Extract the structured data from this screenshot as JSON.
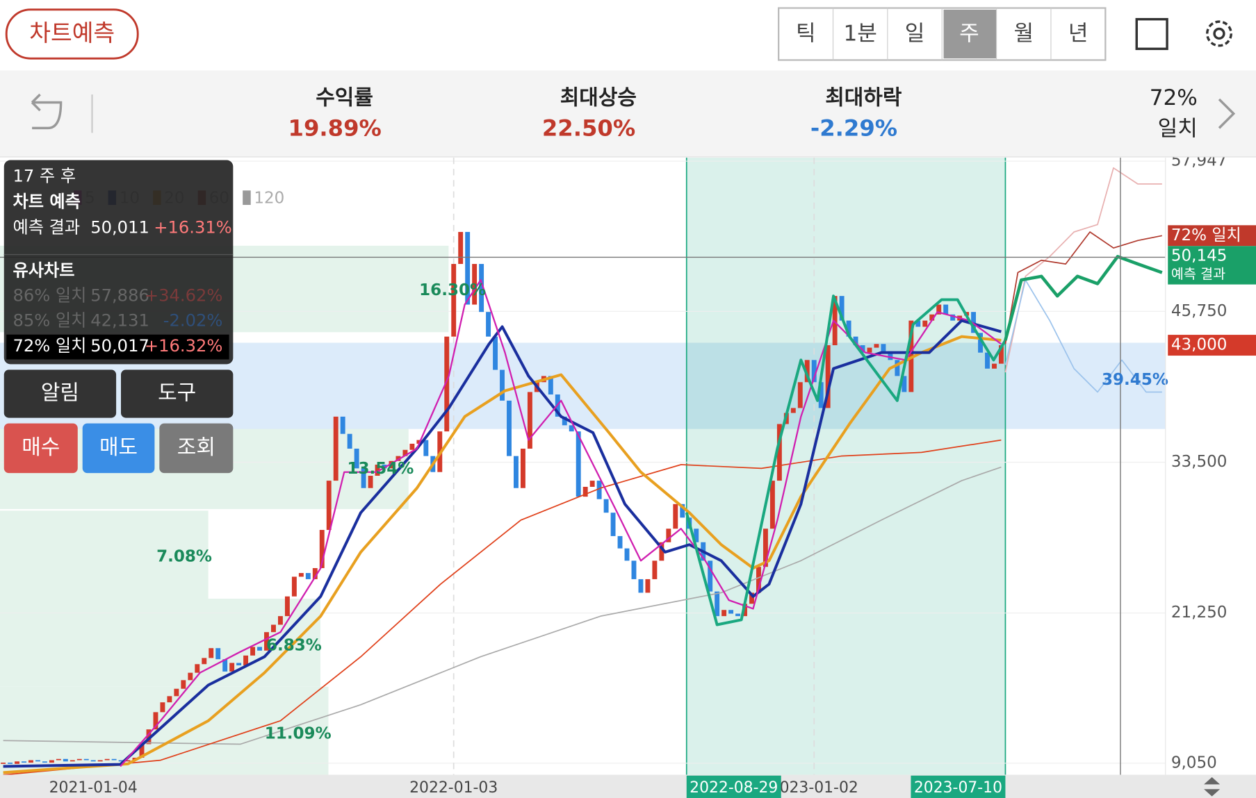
{
  "header": {
    "button": "차트예측",
    "periods": [
      "틱",
      "1분",
      "일",
      "주",
      "월",
      "년"
    ]
  },
  "stats": [
    {
      "label": "수익률",
      "value": "19.89%"
    },
    {
      "label": "최대상승",
      "value": "22.50%"
    },
    {
      "label": "최대하락",
      "value": "-2.29%"
    }
  ],
  "match": {
    "pct": "72%",
    "label": "일치"
  },
  "panel": {
    "weeks": "17 주 후",
    "title": "차트 예측",
    "result_label": "예측 결과",
    "result_price": "50,011",
    "result_change": "+16.31%",
    "similar_title": "유사차트",
    "similar": [
      {
        "label": "86% 일치",
        "price": "57,886",
        "change": "+34.62%"
      },
      {
        "label": "85% 일치",
        "price": "42,131",
        "change": "-2.02%"
      },
      {
        "label": "72% 일치",
        "price": "50,017",
        "change": "+16.32%"
      }
    ]
  },
  "buttons": [
    "알림",
    "도구",
    "매수",
    "매도",
    "조회"
  ],
  "chart_data": {
    "type": "candlestick",
    "xlim": [
      -0.46,
      167.7
    ],
    "ylim": [
      8115,
      58230
    ],
    "yticks": [
      {
        "value": 57947,
        "label": "57,947"
      },
      {
        "value": 45750,
        "label": "45,750"
      },
      {
        "value": 33500,
        "label": "33,500"
      },
      {
        "value": 21250,
        "label": "21,250"
      },
      {
        "value": 9050,
        "label": "9,050"
      }
    ],
    "xticks": [
      {
        "value": 13,
        "label": "2021-01-04"
      },
      {
        "value": 65,
        "label": "2022-01-03"
      },
      {
        "value": 117,
        "label": "2023-01-02"
      }
    ],
    "highlight": [
      {
        "value": 98.6,
        "label": "2022-08-29"
      },
      {
        "value": 144.6,
        "label": "2023-07-10"
      }
    ],
    "band": [
      36200,
      43200
    ],
    "crosshair": {
      "x": 161.2,
      "y": 50145
    },
    "legend": [
      {
        "name": "5",
        "color": "#d020b0"
      },
      {
        "name": "10",
        "color": "#1a2f9e"
      },
      {
        "name": "20",
        "color": "#e8a020"
      },
      {
        "name": "60",
        "color": "#b03a2e"
      },
      {
        "name": "120",
        "color": "#999999"
      }
    ],
    "up_color": "#d43a2a",
    "down_color": "#2f86e0",
    "open": [
      9000,
      9100,
      9000,
      9200,
      9100,
      9300,
      9200,
      9100,
      9300,
      9400,
      9200,
      9300,
      9400,
      9300,
      9200,
      9300,
      9400,
      9300,
      9200,
      9300,
      9500,
      10600,
      11800,
      13200,
      14000,
      14500,
      15100,
      15800,
      16400,
      17100,
      17600,
      18400,
      17500,
      16500,
      17200,
      17000,
      17800,
      18500,
      18200,
      19700,
      20300,
      21000,
      22600,
      24200,
      24500,
      24000,
      24900,
      28000,
      32000,
      37200,
      35800,
      34600,
      33000,
      31400,
      32400,
      33300,
      33000,
      33600,
      34000,
      34500,
      35000,
      35300,
      34000,
      32700,
      36000,
      43700,
      49600,
      52200,
      46300,
      49600,
      45700,
      43700,
      41000,
      38500,
      34000,
      31400,
      34600,
      39200,
      40000,
      40500,
      39000,
      37200,
      36500,
      36000,
      30700,
      31500,
      32000,
      30500,
      29400,
      27500,
      26500,
      25500,
      24000,
      22900,
      24000,
      25500,
      27000,
      28100,
      30100,
      29000,
      28100,
      27000,
      25500,
      23000,
      21000,
      21500,
      21200,
      21000,
      22000,
      22900,
      25000,
      28100,
      32000,
      36600,
      37500,
      37900,
      40000,
      41800,
      40000,
      37900,
      43000,
      47000,
      45000,
      43700,
      43000,
      42400,
      42800,
      43100,
      42500,
      41800,
      40500,
      39200,
      45000,
      44500,
      45000,
      45500,
      46300,
      45500,
      45000,
      45400,
      45700,
      44000,
      42400,
      41100,
      41500
    ],
    "close": [
      9100,
      9000,
      9200,
      9100,
      9300,
      9200,
      9100,
      9300,
      9400,
      9200,
      9300,
      9400,
      9300,
      9200,
      9300,
      9400,
      9300,
      9200,
      9300,
      9500,
      10600,
      11800,
      13200,
      14000,
      14500,
      15100,
      15800,
      16400,
      17100,
      17600,
      18400,
      17500,
      16500,
      17200,
      17000,
      17800,
      18500,
      18200,
      19700,
      20300,
      21000,
      22600,
      24200,
      24500,
      24000,
      24900,
      28000,
      32000,
      37200,
      35800,
      34600,
      33000,
      31400,
      32400,
      33300,
      33000,
      33600,
      34000,
      34500,
      35000,
      35300,
      34000,
      32700,
      36000,
      43700,
      49600,
      52200,
      46300,
      49600,
      45700,
      43700,
      41000,
      38500,
      34000,
      31400,
      34600,
      39200,
      40000,
      40500,
      39000,
      37200,
      36500,
      36000,
      30700,
      31500,
      32000,
      30500,
      29400,
      27500,
      26500,
      25500,
      24000,
      22900,
      24000,
      25500,
      27000,
      28100,
      30100,
      29000,
      28100,
      27000,
      25500,
      23000,
      21000,
      21500,
      21200,
      21000,
      22000,
      22900,
      25000,
      28100,
      32000,
      36600,
      37500,
      37900,
      40000,
      41800,
      40000,
      37900,
      43000,
      47000,
      45000,
      43700,
      43000,
      42400,
      42800,
      43100,
      42500,
      41800,
      40500,
      39200,
      45000,
      44500,
      45000,
      45500,
      46300,
      45500,
      45000,
      45400,
      45700,
      44000,
      42400,
      41100,
      41500,
      43000
    ],
    "lines": [
      {
        "color": "#aaaaaa",
        "width": 1.5,
        "x": [
          0,
          34.2,
          51.6,
          68.9,
          86.2,
          103.6,
          115.1,
          126.7,
          138.3,
          144
        ],
        "values": [
          10900,
          10600,
          13800,
          17700,
          21000,
          22900,
          25500,
          28800,
          32000,
          33100
        ]
      },
      {
        "color": "#e0401a",
        "width": 1.5,
        "x": [
          0,
          22.7,
          40,
          51.6,
          63.1,
          74.7,
          86.2,
          97.8,
          109.4,
          120.9,
          132.5,
          144
        ],
        "values": [
          8100,
          9300,
          12500,
          17700,
          23600,
          28800,
          31400,
          33300,
          33000,
          34000,
          34300,
          35300
        ]
      },
      {
        "color": "#e8a020",
        "width": 3.5,
        "x": [
          0,
          18,
          29.6,
          37.7,
          45.8,
          51.6,
          59.7,
          66.6,
          72.4,
          80.5,
          87.4,
          92,
          99,
          103.6,
          108.2,
          110.5,
          115.1,
          122.1,
          127.9,
          132.5,
          138.3,
          144
        ],
        "values": [
          8300,
          9000,
          12500,
          16400,
          21000,
          26200,
          31400,
          37200,
          39300,
          40600,
          35900,
          32700,
          29400,
          26800,
          24900,
          25500,
          30700,
          36600,
          41100,
          42400,
          43700,
          43400
        ]
      },
      {
        "color": "#1a2f9e",
        "width": 3.5,
        "x": [
          0,
          16.9,
          29.6,
          37.7,
          45.8,
          51.6,
          59.7,
          64.3,
          70.1,
          72,
          75.8,
          80.5,
          85.1,
          89.7,
          95.5,
          99,
          103.6,
          108.2,
          110.5,
          115.1,
          119.8,
          126.7,
          133.6,
          138.3,
          144
        ],
        "values": [
          8800,
          8960,
          15400,
          17700,
          22600,
          29400,
          34600,
          37900,
          43100,
          44500,
          40500,
          37200,
          35900,
          30100,
          26200,
          26800,
          25500,
          22600,
          23600,
          30100,
          41100,
          42400,
          42400,
          45000,
          44100
        ]
      },
      {
        "color": "#d020b0",
        "width": 2,
        "x": [
          16.9,
          22.7,
          28.4,
          34.2,
          40,
          45.8,
          49.2,
          53.9,
          59.7,
          64.3,
          66.6,
          68.9,
          72.4,
          75.8,
          80.5,
          82.8,
          88.6,
          92,
          97.8,
          101.3,
          104.7,
          108.2,
          111.7,
          115.1,
          119.8,
          124.4,
          130.2,
          134.8,
          139.4,
          144
        ],
        "values": [
          8800,
          12500,
          16400,
          18100,
          19700,
          24900,
          32700,
          32700,
          34600,
          40500,
          46300,
          48300,
          42400,
          35300,
          38500,
          35900,
          29400,
          25500,
          28100,
          25500,
          22300,
          21600,
          28800,
          37200,
          45000,
          42400,
          41800,
          45700,
          45000,
          43100
        ]
      },
      {
        "color": "#1aa880",
        "width": 3.5,
        "x": [
          98.6,
          103,
          106.5,
          111.7,
          115.1,
          117.5,
          119.8,
          122.1,
          129,
          131.3,
          135.4,
          137.7,
          139.4,
          142.9,
          144.6
        ],
        "values": [
          29400,
          20300,
          20700,
          34600,
          41800,
          38500,
          47000,
          43700,
          38500,
          44700,
          46700,
          46700,
          45000,
          41800,
          43400
        ]
      },
      {
        "color": "#e8b0b0",
        "width": 1.5,
        "x": [
          144.6,
          147.5,
          151,
          154.5,
          157.9,
          160.2,
          163.7,
          167.2
        ],
        "values": [
          40800,
          48600,
          50200,
          52200,
          52800,
          57400,
          56100,
          56100
        ]
      },
      {
        "color": "#9cc3ec",
        "width": 1.5,
        "x": [
          144.6,
          147.5,
          151,
          154.5,
          157.9,
          161.4,
          164.9,
          167.2
        ],
        "values": [
          41400,
          48300,
          45000,
          41100,
          39200,
          41800,
          39200,
          39200
        ]
      },
      {
        "color": "#b03a2e",
        "width": 1.5,
        "x": [
          144.6,
          146.4,
          149.8,
          153.3,
          156.8,
          160.2,
          163.7,
          167.2
        ],
        "values": [
          43100,
          48900,
          49900,
          49600,
          52200,
          50900,
          51500,
          51900
        ]
      },
      {
        "color": "#1aa068",
        "width": 4,
        "x": [
          144.6,
          146.9,
          149.8,
          152.1,
          155,
          157.9,
          160.8,
          163.7,
          167.2
        ],
        "values": [
          43400,
          48300,
          48600,
          47000,
          48600,
          48000,
          50200,
          49600,
          48900
        ]
      }
    ],
    "annotations": [
      {
        "text": "16.30%",
        "color": "#1a8a5a"
      },
      {
        "text": "13.54%",
        "color": "#1a8a5a"
      },
      {
        "text": "7.08%",
        "color": "#1a8a5a"
      },
      {
        "text": "6.83%",
        "color": "#1a8a5a"
      },
      {
        "text": "11.09%",
        "color": "#1a8a5a"
      },
      {
        "text": "39.45%",
        "color": "#2f7ad0"
      }
    ],
    "price_tags": [
      {
        "value": 51900,
        "label": "72% 일치",
        "color": "#c0392b"
      },
      {
        "value": 50145,
        "label": "50,145",
        "note": "예측 결과",
        "color": "#1aa068"
      },
      {
        "value": 43000,
        "label": "43,000",
        "color": "#d43a2a"
      }
    ]
  }
}
